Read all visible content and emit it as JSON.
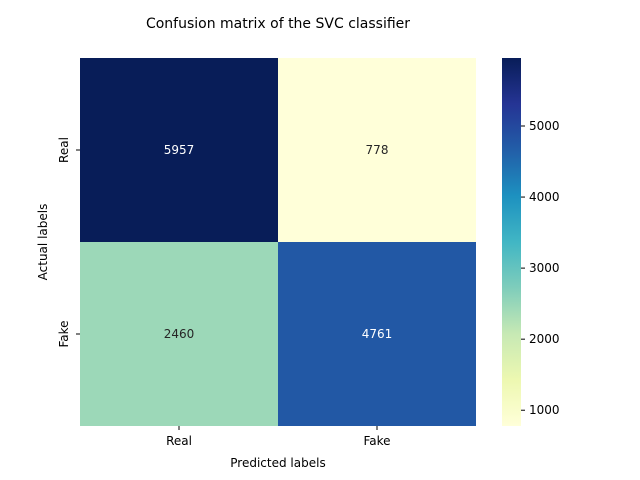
{
  "chart_data": {
    "type": "heatmap",
    "title": "Confusion matrix of the SVC classifier",
    "xlabel": "Predicted labels",
    "ylabel": "Actual labels",
    "x_categories": [
      "Real",
      "Fake"
    ],
    "y_categories": [
      "Real",
      "Fake"
    ],
    "values": [
      [
        5957,
        778
      ],
      [
        2460,
        4761
      ]
    ],
    "colormap": "YlGnBu",
    "colorbar": {
      "min": 778,
      "max": 5957,
      "ticks": [
        1000,
        2000,
        3000,
        4000,
        5000
      ],
      "tick_labels": [
        "1000",
        "2000",
        "3000",
        "4000",
        "5000"
      ]
    },
    "annotation_colors": {
      "dark_cell": "#ffffff",
      "light_cell": "#262626"
    }
  }
}
